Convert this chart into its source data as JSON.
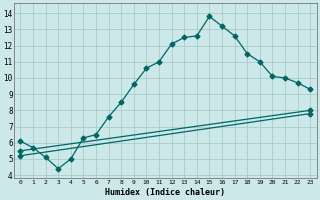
{
  "xlabel": "Humidex (Indice chaleur)",
  "ylabel": "",
  "bg_color": "#cce8e8",
  "line_color": "#006666",
  "grid_color": "#aacccc",
  "xlim": [
    -0.5,
    23.5
  ],
  "ylim": [
    3.8,
    14.6
  ],
  "yticks": [
    4,
    5,
    6,
    7,
    8,
    9,
    10,
    11,
    12,
    13,
    14
  ],
  "xticks": [
    0,
    1,
    2,
    3,
    4,
    5,
    6,
    7,
    8,
    9,
    10,
    11,
    12,
    13,
    14,
    15,
    16,
    17,
    18,
    19,
    20,
    21,
    22,
    23
  ],
  "curve1_x": [
    0,
    1,
    2,
    3,
    4,
    5,
    6,
    7,
    8,
    9,
    10,
    11,
    12,
    13,
    14,
    15,
    16,
    17,
    18,
    19,
    20,
    21,
    22,
    23
  ],
  "curve1_y": [
    6.1,
    5.7,
    5.1,
    4.4,
    5.0,
    6.3,
    6.5,
    7.6,
    8.5,
    9.6,
    10.6,
    11.0,
    12.1,
    12.5,
    12.6,
    13.8,
    13.2,
    12.6,
    11.5,
    11.0,
    10.1,
    10.0,
    9.7,
    9.3
  ],
  "curve2_x": [
    0,
    23
  ],
  "curve2_y": [
    5.5,
    8.0
  ],
  "curve3_x": [
    0,
    23
  ],
  "curve3_y": [
    5.2,
    7.8
  ]
}
